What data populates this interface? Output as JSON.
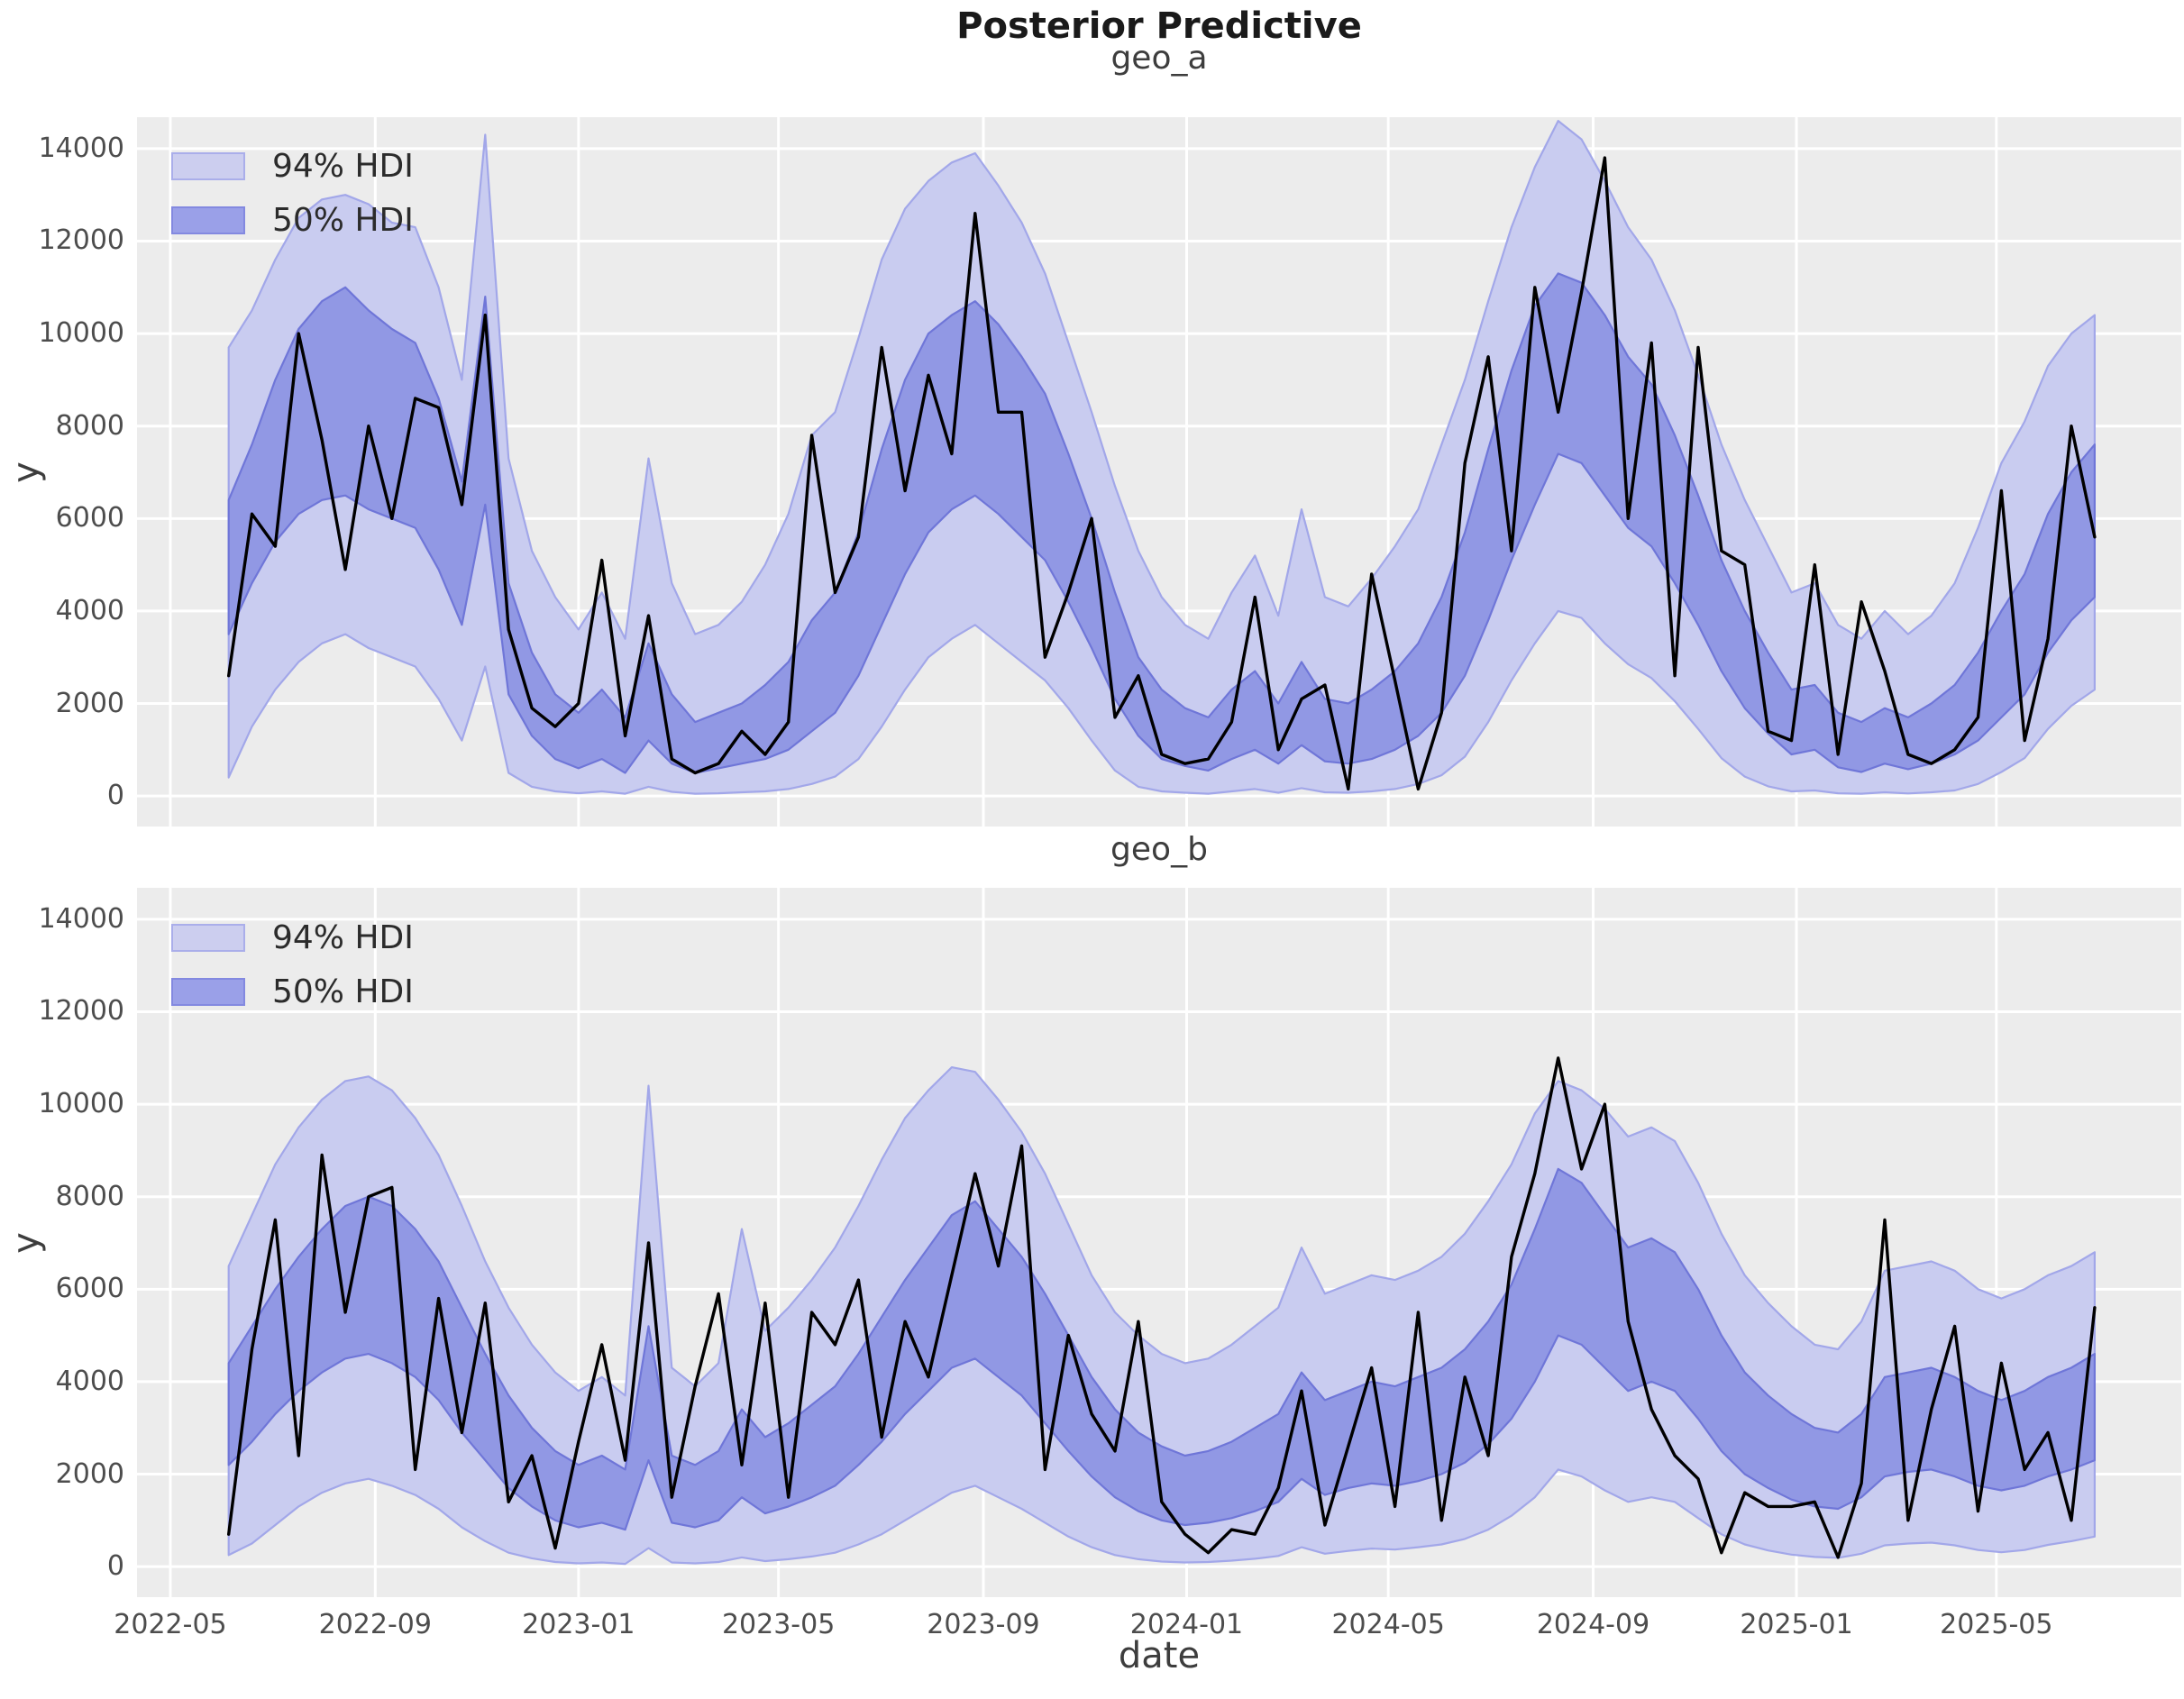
{
  "header": {
    "title": "Posterior Predictive"
  },
  "colors": {
    "figure_bg": "#ffffff",
    "axes_bg": "#ececec",
    "grid": "#ffffff",
    "hdi94_fill": "#c9ccf0",
    "hdi94_edge": "#a2a7e9",
    "hdi50_fill": "#9198e4",
    "hdi50_edge": "#6f76d8",
    "legend94_fill": "#ccceef",
    "legend94_edge": "#aaaeea",
    "legend50_fill": "#9aa0e8",
    "legend50_edge": "#8389e0",
    "observed_line": "#000000",
    "title_text": "#1a1a1a",
    "label_text": "#3d3d3d",
    "tick_text": "#4d4d4d"
  },
  "legend": {
    "entries": [
      {
        "label": "94% HDI",
        "key": "hdi94"
      },
      {
        "label": "50% HDI",
        "key": "hdi50"
      }
    ]
  },
  "axes": {
    "xlabel": "date",
    "x_min": "2022-04-11",
    "x_max": "2025-08-20",
    "ylim": [
      -660,
      14680
    ],
    "yticks": [
      {
        "value": 0,
        "label": "0"
      },
      {
        "value": 2000,
        "label": "2000"
      },
      {
        "value": 4000,
        "label": "4000"
      },
      {
        "value": 6000,
        "label": "6000"
      },
      {
        "value": 8000,
        "label": "8000"
      },
      {
        "value": 10000,
        "label": "10000"
      },
      {
        "value": 12000,
        "label": "12000"
      },
      {
        "value": 14000,
        "label": "14000"
      }
    ],
    "xticks": [
      {
        "date": "2022-05-01",
        "label": "2022-05"
      },
      {
        "date": "2022-09-01",
        "label": "2022-09"
      },
      {
        "date": "2023-01-01",
        "label": "2023-01"
      },
      {
        "date": "2023-05-01",
        "label": "2023-05"
      },
      {
        "date": "2023-09-01",
        "label": "2023-09"
      },
      {
        "date": "2024-01-01",
        "label": "2024-01"
      },
      {
        "date": "2024-05-01",
        "label": "2024-05"
      },
      {
        "date": "2024-09-01",
        "label": "2024-09"
      },
      {
        "date": "2025-01-01",
        "label": "2025-01"
      },
      {
        "date": "2025-05-01",
        "label": "2025-05"
      }
    ]
  },
  "chart_data": [
    {
      "type": "line",
      "title": "geo_a",
      "ylabel": "y",
      "x_start": "2022-06-05",
      "x_step_days": 14,
      "series": {
        "hdi94_upper": [
          9700,
          10500,
          11600,
          12500,
          12900,
          13000,
          12800,
          12400,
          12300,
          11000,
          9000,
          14300,
          7300,
          5300,
          4300,
          3600,
          4400,
          3400,
          7300,
          4600,
          3500,
          3700,
          4200,
          5000,
          6100,
          7800,
          8300,
          9900,
          11600,
          12700,
          13300,
          13700,
          13900,
          13200,
          12400,
          11300,
          9800,
          8300,
          6700,
          5300,
          4300,
          3700,
          3400,
          4400,
          5200,
          3900,
          6200,
          4300,
          4100,
          4700,
          5400,
          6200,
          7600,
          9000,
          10700,
          12300,
          13600,
          14600,
          14200,
          13300,
          12300,
          11600,
          10500,
          9100,
          7600,
          6400,
          5400,
          4400,
          4600,
          3700,
          3400,
          4000,
          3500,
          3900,
          4600,
          5800,
          7200,
          8100,
          9300,
          10000,
          10400
        ],
        "hdi94_lower": [
          400,
          1500,
          2300,
          2900,
          3300,
          3500,
          3200,
          3000,
          2800,
          2100,
          1200,
          2800,
          500,
          200,
          100,
          60,
          100,
          50,
          200,
          90,
          50,
          60,
          80,
          100,
          150,
          260,
          420,
          800,
          1500,
          2300,
          3000,
          3400,
          3700,
          3300,
          2900,
          2500,
          1900,
          1200,
          550,
          200,
          100,
          70,
          50,
          100,
          150,
          70,
          170,
          80,
          70,
          100,
          150,
          260,
          450,
          850,
          1600,
          2500,
          3300,
          4000,
          3850,
          3300,
          2850,
          2550,
          2050,
          1450,
          820,
          420,
          210,
          100,
          120,
          60,
          50,
          80,
          55,
          80,
          120,
          260,
          520,
          820,
          1450,
          1950,
          2300
        ],
        "hdi50_upper": [
          6400,
          7600,
          9000,
          10100,
          10700,
          11000,
          10500,
          10100,
          9800,
          8600,
          6800,
          10800,
          4600,
          3100,
          2200,
          1800,
          2300,
          1700,
          3300,
          2200,
          1600,
          1800,
          2000,
          2400,
          2900,
          3800,
          4400,
          5700,
          7500,
          9000,
          10000,
          10400,
          10700,
          10200,
          9500,
          8700,
          7400,
          6000,
          4400,
          3000,
          2300,
          1900,
          1700,
          2300,
          2700,
          2000,
          2900,
          2100,
          2000,
          2300,
          2700,
          3300,
          4300,
          5700,
          7500,
          9200,
          10600,
          11300,
          11100,
          10400,
          9500,
          8900,
          7800,
          6500,
          5100,
          4000,
          3100,
          2300,
          2400,
          1800,
          1600,
          1900,
          1700,
          2000,
          2400,
          3100,
          4000,
          4800,
          6100,
          7000,
          7600
        ],
        "hdi50_lower": [
          3500,
          4600,
          5500,
          6100,
          6400,
          6500,
          6200,
          6000,
          5800,
          4900,
          3700,
          6300,
          2200,
          1300,
          800,
          600,
          800,
          500,
          1200,
          700,
          500,
          600,
          700,
          800,
          1000,
          1400,
          1800,
          2600,
          3700,
          4800,
          5700,
          6200,
          6500,
          6100,
          5600,
          5100,
          4200,
          3200,
          2100,
          1300,
          800,
          650,
          550,
          800,
          1000,
          700,
          1100,
          750,
          700,
          800,
          1000,
          1300,
          1800,
          2600,
          3800,
          5100,
          6300,
          7400,
          7200,
          6500,
          5800,
          5400,
          4600,
          3700,
          2700,
          1900,
          1350,
          900,
          1000,
          620,
          520,
          700,
          580,
          700,
          900,
          1200,
          1700,
          2200,
          3100,
          3800,
          4300
        ],
        "observed": [
          2600,
          6100,
          5400,
          10000,
          7700,
          4900,
          8000,
          6000,
          8600,
          8400,
          6300,
          10400,
          3600,
          1900,
          1500,
          2000,
          5100,
          1300,
          3900,
          800,
          500,
          700,
          1400,
          900,
          1600,
          7800,
          4400,
          5600,
          9700,
          6600,
          9100,
          7400,
          12600,
          8300,
          8300,
          3000,
          4400,
          6000,
          1700,
          2600,
          900,
          700,
          800,
          1600,
          4300,
          1000,
          2100,
          2400,
          150,
          4800,
          2500,
          150,
          1800,
          7200,
          9500,
          5300,
          11000,
          8300,
          10900,
          13800,
          6000,
          9800,
          2600,
          9700,
          5300,
          5000,
          1400,
          1200,
          5000,
          900,
          4200,
          2700,
          900,
          700,
          1000,
          1700,
          6600,
          1200,
          3400,
          8000,
          5600
        ]
      }
    },
    {
      "type": "line",
      "title": "geo_b",
      "ylabel": "y",
      "x_start": "2022-06-05",
      "x_step_days": 14,
      "series": {
        "hdi94_upper": [
          6500,
          7600,
          8700,
          9500,
          10100,
          10500,
          10600,
          10300,
          9700,
          8900,
          7800,
          6600,
          5600,
          4800,
          4200,
          3800,
          4100,
          3700,
          10400,
          4300,
          3900,
          4400,
          7300,
          5100,
          5600,
          6200,
          6900,
          7800,
          8800,
          9700,
          10300,
          10800,
          10700,
          10100,
          9400,
          8500,
          7400,
          6300,
          5500,
          5000,
          4600,
          4400,
          4500,
          4800,
          5200,
          5600,
          6900,
          5900,
          6100,
          6300,
          6200,
          6400,
          6700,
          7200,
          7900,
          8700,
          9800,
          10500,
          10300,
          9900,
          9300,
          9500,
          9200,
          8300,
          7200,
          6300,
          5700,
          5200,
          4800,
          4700,
          5300,
          6400,
          6500,
          6600,
          6400,
          6000,
          5800,
          6000,
          6300,
          6500,
          6800
        ],
        "hdi94_lower": [
          250,
          500,
          900,
          1300,
          1600,
          1800,
          1900,
          1750,
          1550,
          1250,
          850,
          550,
          300,
          180,
          100,
          70,
          90,
          60,
          400,
          90,
          70,
          100,
          200,
          120,
          160,
          220,
          300,
          480,
          700,
          1000,
          1300,
          1600,
          1750,
          1500,
          1250,
          950,
          650,
          420,
          250,
          160,
          110,
          90,
          100,
          130,
          170,
          230,
          420,
          280,
          340,
          390,
          370,
          420,
          480,
          600,
          800,
          1100,
          1500,
          2100,
          1950,
          1650,
          1400,
          1500,
          1400,
          1050,
          700,
          480,
          350,
          260,
          210,
          190,
          280,
          460,
          500,
          520,
          460,
          360,
          310,
          360,
          470,
          550,
          650
        ],
        "hdi50_upper": [
          4400,
          5200,
          6000,
          6700,
          7300,
          7800,
          8000,
          7800,
          7300,
          6600,
          5600,
          4600,
          3700,
          3000,
          2500,
          2200,
          2400,
          2100,
          5200,
          2400,
          2200,
          2500,
          3400,
          2800,
          3100,
          3500,
          3900,
          4600,
          5400,
          6200,
          6900,
          7600,
          7900,
          7300,
          6700,
          5900,
          5000,
          4100,
          3400,
          2900,
          2600,
          2400,
          2500,
          2700,
          3000,
          3300,
          4200,
          3600,
          3800,
          4000,
          3900,
          4100,
          4300,
          4700,
          5300,
          6100,
          7300,
          8600,
          8300,
          7600,
          6900,
          7100,
          6800,
          6000,
          5000,
          4200,
          3700,
          3300,
          3000,
          2900,
          3300,
          4100,
          4200,
          4300,
          4100,
          3800,
          3600,
          3800,
          4100,
          4300,
          4600
        ],
        "hdi50_lower": [
          2200,
          2700,
          3300,
          3800,
          4200,
          4500,
          4600,
          4400,
          4100,
          3600,
          2900,
          2300,
          1700,
          1300,
          1000,
          850,
          950,
          800,
          2300,
          950,
          850,
          1000,
          1500,
          1150,
          1300,
          1500,
          1750,
          2200,
          2700,
          3300,
          3800,
          4300,
          4500,
          4100,
          3700,
          3100,
          2500,
          1950,
          1500,
          1200,
          1000,
          900,
          950,
          1050,
          1200,
          1400,
          1900,
          1550,
          1700,
          1800,
          1750,
          1850,
          2000,
          2250,
          2650,
          3200,
          4000,
          5000,
          4800,
          4300,
          3800,
          4000,
          3800,
          3200,
          2500,
          2000,
          1700,
          1450,
          1300,
          1250,
          1500,
          1950,
          2050,
          2100,
          1950,
          1750,
          1650,
          1750,
          1950,
          2100,
          2300
        ],
        "observed": [
          700,
          4700,
          7500,
          2400,
          8900,
          5500,
          8000,
          8200,
          2100,
          5800,
          2900,
          5700,
          1400,
          2400,
          400,
          2700,
          4800,
          2300,
          7000,
          1500,
          3900,
          5900,
          2200,
          5700,
          1500,
          5500,
          4800,
          6200,
          2800,
          5300,
          4100,
          6300,
          8500,
          6500,
          9100,
          2100,
          5000,
          3300,
          2500,
          5300,
          1400,
          700,
          300,
          800,
          700,
          1700,
          3800,
          900,
          2600,
          4300,
          1300,
          5500,
          1000,
          4100,
          2400,
          6700,
          8500,
          11000,
          8600,
          10000,
          5300,
          3400,
          2400,
          1900,
          300,
          1600,
          1300,
          1300,
          1400,
          200,
          1800,
          7500,
          1000,
          3400,
          5200,
          1200,
          4400,
          2100,
          2900,
          1000,
          5600
        ]
      }
    }
  ]
}
